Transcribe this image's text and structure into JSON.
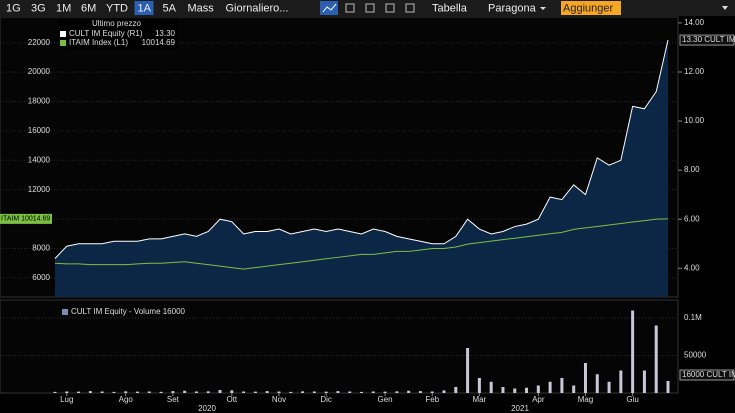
{
  "toolbar": {
    "buttons": [
      "1G",
      "3G",
      "1M",
      "6M",
      "YTD",
      "1A",
      "5A",
      "Mass",
      "Giornaliero..."
    ],
    "active": "1A",
    "links": [
      "Tabella",
      "Paragona"
    ],
    "add": "Aggiunger"
  },
  "chart_data": [
    {
      "type": "line",
      "legend_title": "Ultimo prezzo",
      "categories": [
        null,
        "Lug",
        null,
        null,
        null,
        null,
        "Ago",
        null,
        null,
        null,
        "Set",
        null,
        null,
        null,
        null,
        "Ott",
        null,
        null,
        null,
        "Nov",
        null,
        null,
        null,
        "Dic",
        null,
        null,
        null,
        null,
        "Gen",
        null,
        null,
        null,
        "Feb",
        null,
        null,
        null,
        "Mar",
        null,
        null,
        null,
        null,
        "Apr",
        null,
        null,
        null,
        "Mag",
        null,
        null,
        null,
        "Giu",
        null,
        null,
        null
      ],
      "years": [
        "2020",
        "2021"
      ],
      "series": [
        {
          "name": "CULT IM Equity  (R1)",
          "last_label": "13.30",
          "side_label": "13.30 CULT IM",
          "color": "#ffffff",
          "fill": "#0c2746",
          "axis": "y2",
          "values": [
            4.4,
            4.9,
            5.0,
            5.0,
            5.0,
            5.1,
            5.1,
            5.1,
            5.2,
            5.2,
            5.3,
            5.4,
            5.3,
            5.5,
            6.0,
            5.9,
            5.4,
            5.5,
            5.5,
            5.6,
            5.4,
            5.5,
            5.6,
            5.5,
            5.6,
            5.5,
            5.4,
            5.6,
            5.5,
            5.3,
            5.2,
            5.1,
            5.0,
            5.0,
            5.3,
            6.0,
            5.6,
            5.4,
            5.5,
            5.7,
            5.8,
            6.0,
            6.9,
            6.8,
            7.4,
            7.0,
            8.5,
            8.2,
            8.4,
            10.6,
            10.5,
            11.2,
            13.3
          ]
        },
        {
          "name": "ITAIM Index  (L1)",
          "last_label": "10014.69",
          "side_label": "ITAIM 10014.69",
          "color": "#7ac043",
          "values": [
            7000,
            6950,
            6950,
            6900,
            6900,
            6900,
            6900,
            6950,
            7000,
            7000,
            7050,
            7100,
            7000,
            6900,
            6800,
            6700,
            6600,
            6700,
            6800,
            6900,
            7000,
            7100,
            7200,
            7300,
            7400,
            7500,
            7600,
            7600,
            7700,
            7800,
            7800,
            7900,
            8000,
            8000,
            8100,
            8300,
            8400,
            8500,
            8600,
            8700,
            8800,
            8900,
            9000,
            9100,
            9300,
            9400,
            9500,
            9600,
            9700,
            9800,
            9900,
            10000,
            10014.69
          ]
        }
      ],
      "ylim": [
        4700,
        23750
      ],
      "yticks": [
        6000,
        8000,
        10000,
        12000,
        14000,
        16000,
        18000,
        20000,
        22000
      ],
      "y2lim": [
        2.83,
        14.24
      ],
      "y2ticks": [
        {
          "value": 4,
          "label": "4.00"
        },
        {
          "value": 6,
          "label": "6.00"
        },
        {
          "value": 8,
          "label": "8.00"
        },
        {
          "value": 10,
          "label": "10.00"
        },
        {
          "value": 12,
          "label": "12.00"
        },
        {
          "value": 14,
          "label": "14.00"
        }
      ],
      "grid": true
    },
    {
      "type": "bar",
      "series": [
        {
          "name": "CULT IM Equity - Volume 16000",
          "side_label": "16000 CULT IM",
          "color": "#c8c8d8",
          "values": [
            1500,
            2000,
            1800,
            2500,
            2000,
            1500,
            2200,
            1800,
            2000,
            1600,
            2500,
            3000,
            2000,
            2200,
            4000,
            3500,
            2000,
            1800,
            2500,
            2000,
            1500,
            2200,
            2000,
            1800,
            2500,
            2000,
            1500,
            2000,
            1800,
            2200,
            3000,
            2500,
            2000,
            3500,
            8000,
            60000,
            20000,
            15000,
            8000,
            6000,
            7000,
            10000,
            15000,
            20000,
            10000,
            40000,
            25000,
            15000,
            30000,
            110000,
            30000,
            90000,
            16000
          ]
        }
      ],
      "ylim": [
        0,
        124000
      ],
      "yticks": [
        50000,
        {
          "value": 100000,
          "label": "0.1M"
        }
      ]
    }
  ]
}
